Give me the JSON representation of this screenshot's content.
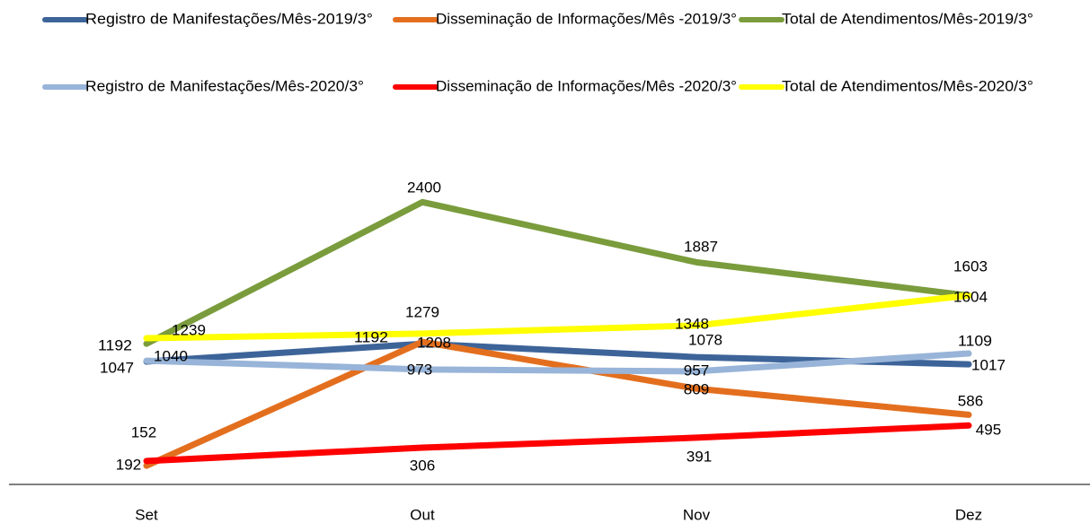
{
  "chart_data": {
    "type": "line",
    "categories": [
      "Set",
      "Out",
      "Nov",
      "Dez"
    ],
    "series": [
      {
        "name": "Registro de Manifestações/Mês-2019/3°",
        "color": "#3d6499",
        "values": [
          1040,
          1192,
          1078,
          1017
        ]
      },
      {
        "name": "Disseminação de Informações/Mês -2019/3°",
        "color": "#e36f1e",
        "values": [
          152,
          1208,
          809,
          586
        ]
      },
      {
        "name": "Total de Atendimentos/Mês-2019/3°",
        "color": "#7a9c3c",
        "values": [
          1192,
          2400,
          1887,
          1603
        ]
      },
      {
        "name": "Registro de Manifestações/Mês-2020/3°",
        "color": "#98b4d8",
        "values": [
          1047,
          973,
          957,
          1109
        ]
      },
      {
        "name": "Disseminação de Informações/Mês -2020/3°",
        "color": "#ff0000",
        "values": [
          192,
          306,
          391,
          495
        ]
      },
      {
        "name": "Total de Atendimentos/Mês-2020/3°",
        "color": "#ffff00",
        "values": [
          1239,
          1279,
          1348,
          1604
        ]
      }
    ],
    "ylim": [
      0,
      2500
    ],
    "legend": "top"
  }
}
